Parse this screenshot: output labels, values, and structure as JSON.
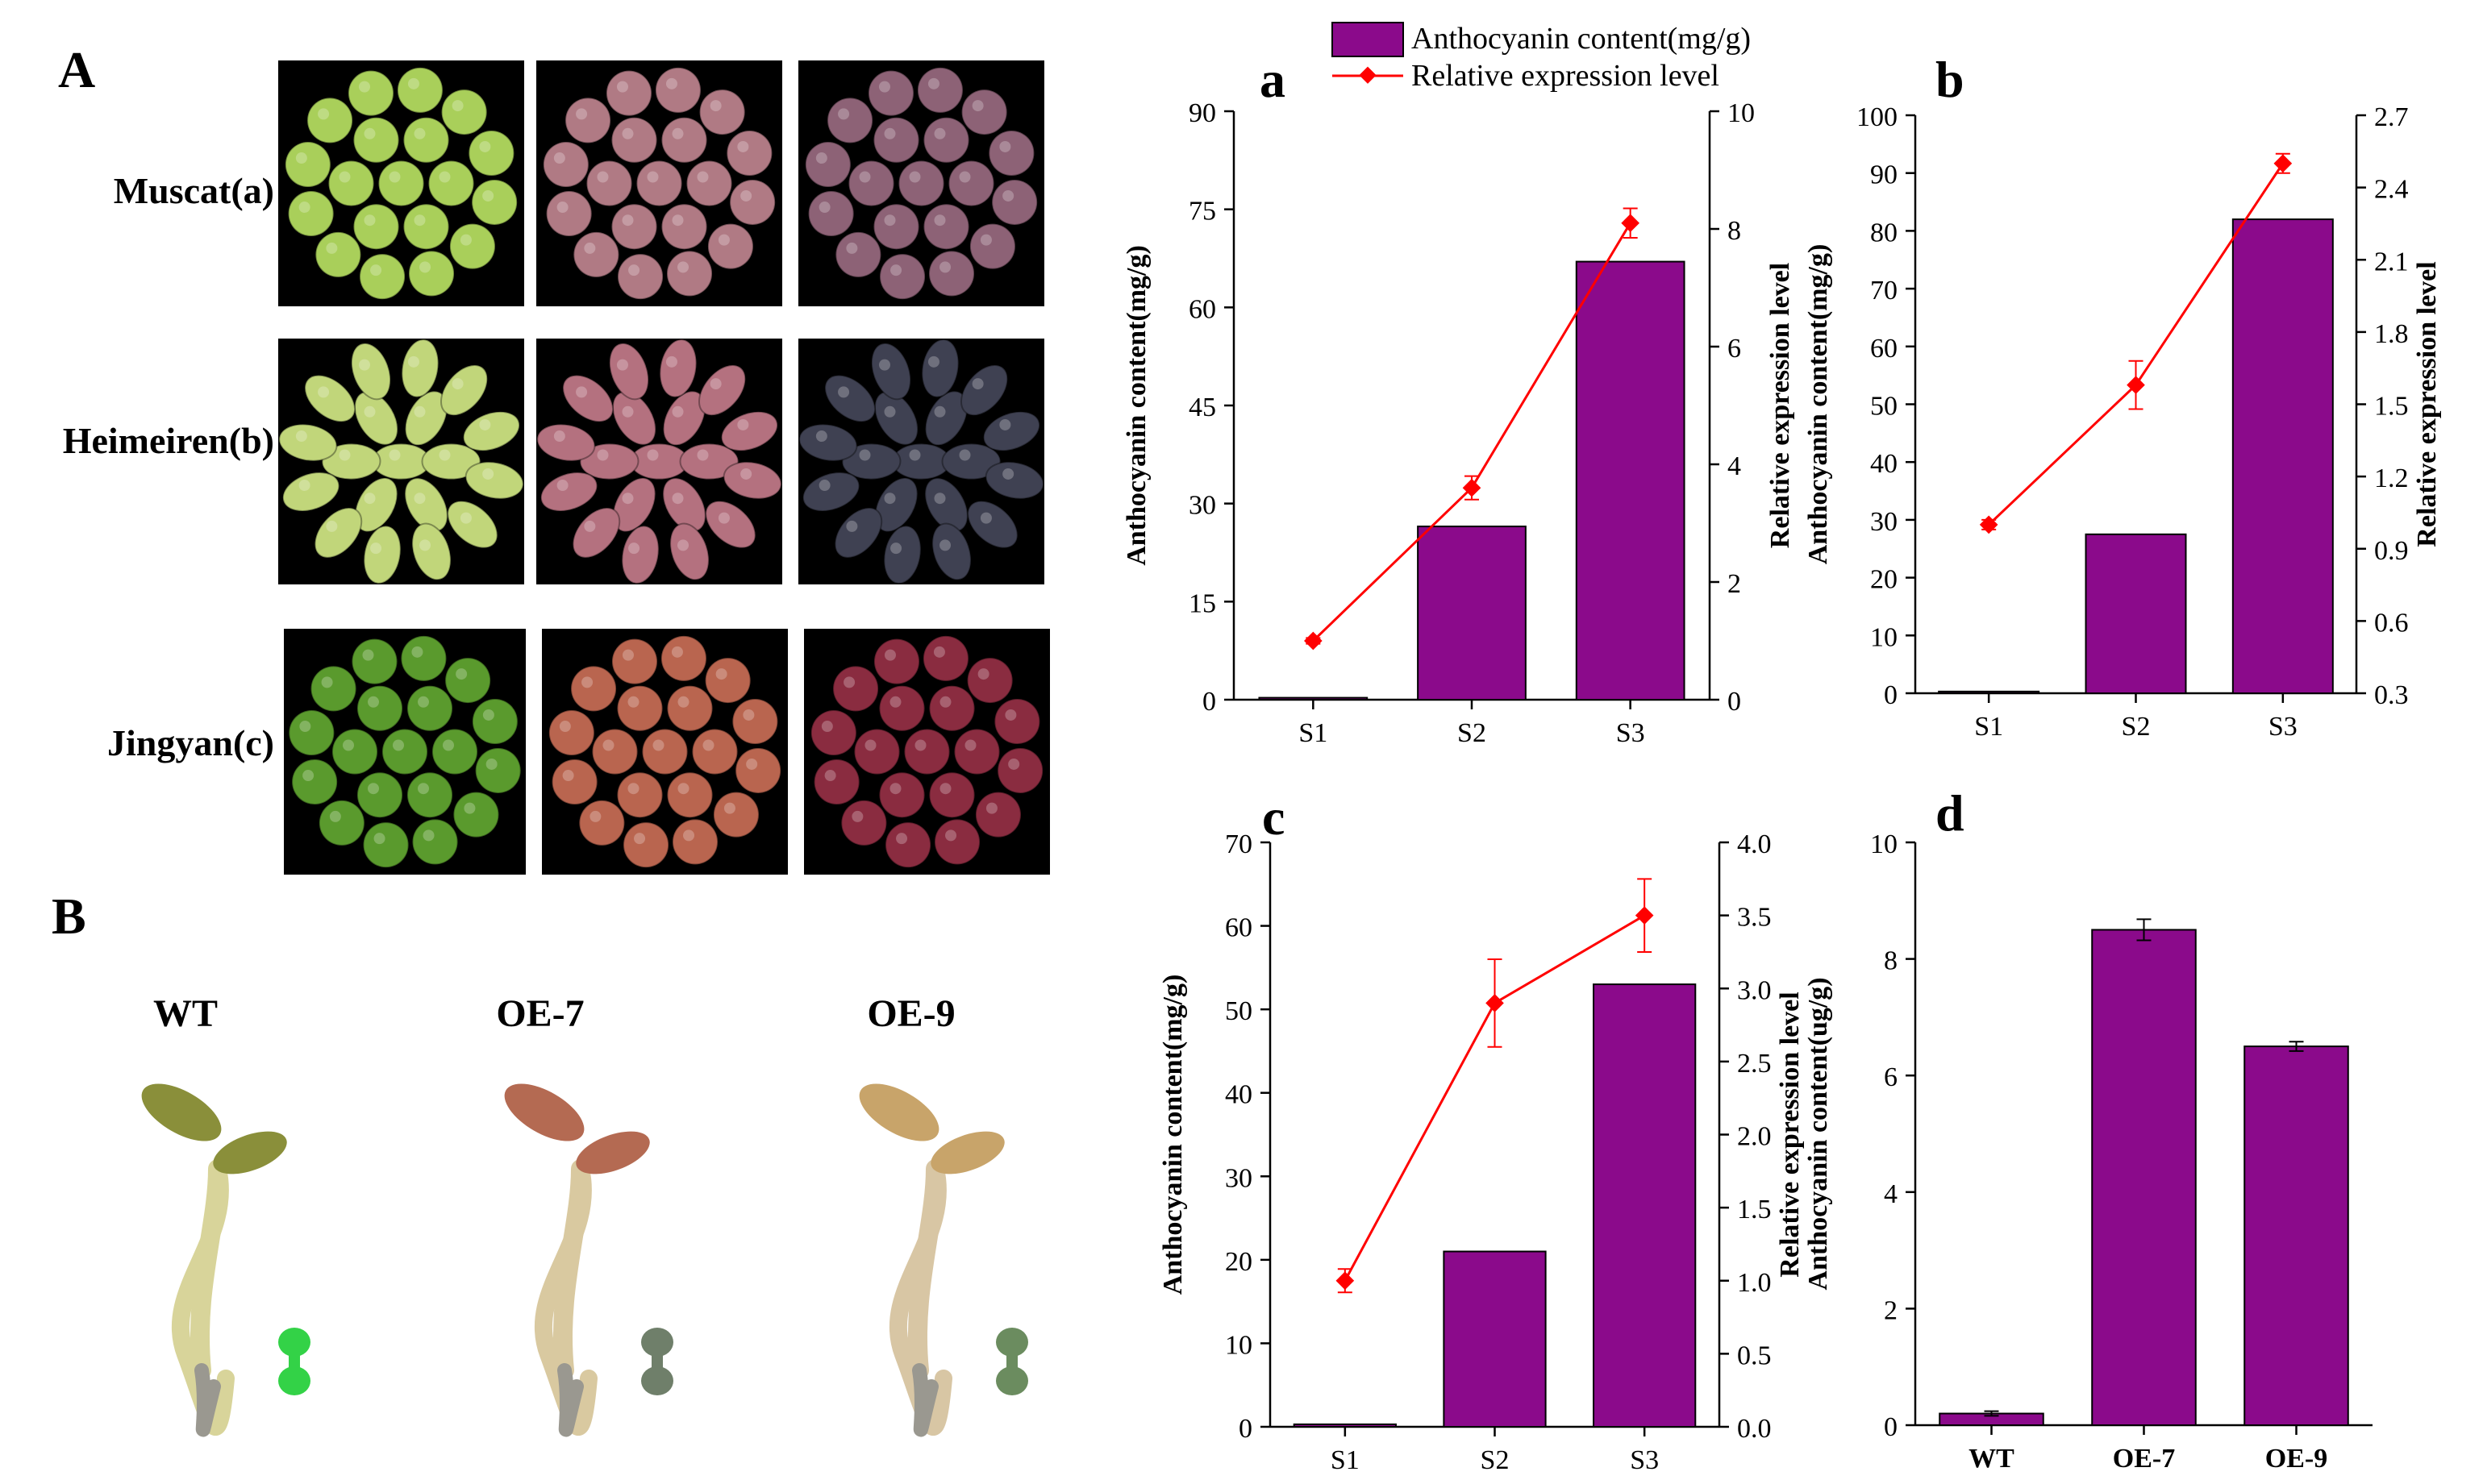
{
  "figure": {
    "panel_A_label": "A",
    "panel_B_label": "B",
    "grape_rows": [
      {
        "label": "Muscat(a)",
        "colors": [
          "#a9cf5a",
          "#b07a84",
          "#8d6276"
        ]
      },
      {
        "label": "Heimeiren(b)",
        "colors": [
          "#c1d67a",
          "#b4717f",
          "#3f4152"
        ]
      },
      {
        "label": "Jingyan(c)",
        "colors": [
          "#5a9a2d",
          "#b9654f",
          "#8a2c40"
        ]
      }
    ],
    "seedlings": [
      {
        "label": "WT",
        "leaf_color": "#8a8f3a",
        "stem_color": "#d8d49a",
        "seed_color": "#33d247"
      },
      {
        "label": "OE-7",
        "leaf_color": "#b46a52",
        "stem_color": "#d9c9a0",
        "seed_color": "#6f7f6a"
      },
      {
        "label": "OE-9",
        "leaf_color": "#c8a46a",
        "stem_color": "#d8c6a4",
        "seed_color": "#6b8c5f"
      }
    ]
  },
  "legend": {
    "bar_label": "Anthocyanin content(mg/g)",
    "line_label": "Relative expression level"
  },
  "colors": {
    "bar": "#8b0a8b",
    "line": "#ff0000"
  },
  "chart_data": [
    {
      "id": "a",
      "type": "bar+line",
      "title": "a",
      "categories": [
        "S1",
        "S2",
        "S3"
      ],
      "bar_series": {
        "name": "Anthocyanin content(mg/g)",
        "values": [
          0.3,
          26.5,
          67
        ]
      },
      "line_series": {
        "name": "Relative expression level",
        "values": [
          1.0,
          3.6,
          8.1
        ],
        "errors": [
          0.05,
          0.2,
          0.25
        ]
      },
      "ylabel": "Anthocyanin content(mg/g)",
      "y2label": "Relative expression level",
      "ylim": [
        0,
        90
      ],
      "yticks": [
        "0",
        "15",
        "30",
        "45",
        "60",
        "75",
        "90"
      ],
      "y2lim": [
        0,
        10
      ],
      "y2ticks": [
        "0",
        "2",
        "4",
        "6",
        "8",
        "10"
      ]
    },
    {
      "id": "b",
      "type": "bar+line",
      "title": "b",
      "categories": [
        "S1",
        "S2",
        "S3"
      ],
      "bar_series": {
        "name": "Anthocyanin content(mg/g)",
        "values": [
          0.3,
          27.5,
          82
        ]
      },
      "line_series": {
        "name": "Relative expression level",
        "values": [
          1.0,
          1.58,
          2.5
        ],
        "errors": [
          0.02,
          0.1,
          0.04
        ]
      },
      "ylabel": "Anthocyanin content(mg/g)",
      "y2label": "Relative expression level",
      "ylim": [
        0,
        100
      ],
      "yticks": [
        "0",
        "10",
        "20",
        "30",
        "40",
        "50",
        "60",
        "70",
        "80",
        "90",
        "100"
      ],
      "y2lim": [
        0.3,
        2.7
      ],
      "y2ticks": [
        "0.3",
        "0.6",
        "0.9",
        "1.2",
        "1.5",
        "1.8",
        "2.1",
        "2.4",
        "2.7"
      ]
    },
    {
      "id": "c",
      "type": "bar+line",
      "title": "c",
      "categories": [
        "S1",
        "S2",
        "S3"
      ],
      "bar_series": {
        "name": "Anthocyanin content(mg/g)",
        "values": [
          0.3,
          21,
          53
        ]
      },
      "line_series": {
        "name": "Relative expression level",
        "values": [
          1.0,
          2.9,
          3.5
        ],
        "errors": [
          0.08,
          0.3,
          0.25
        ]
      },
      "ylabel": "Anthocyanin content(mg/g)",
      "y2label": "Relative expression level",
      "ylim": [
        0,
        70
      ],
      "yticks": [
        "0",
        "10",
        "20",
        "30",
        "40",
        "50",
        "60",
        "70"
      ],
      "y2lim": [
        0,
        4
      ],
      "y2ticks": [
        "0.0",
        "0.5",
        "1.0",
        "1.5",
        "2.0",
        "2.5",
        "3.0",
        "3.5",
        "4.0"
      ]
    },
    {
      "id": "d",
      "type": "bar",
      "title": "d",
      "categories": [
        "WT",
        "OE-7",
        "OE-9"
      ],
      "bar_series": {
        "name": "Anthocyanin content(ug/g)",
        "values": [
          0.2,
          8.5,
          6.5
        ],
        "errors": [
          0.04,
          0.18,
          0.08
        ]
      },
      "ylabel": "Anthocyanin content(ug/g)",
      "ylim": [
        0,
        10
      ],
      "yticks": [
        "0",
        "2",
        "4",
        "6",
        "8",
        "10"
      ]
    }
  ]
}
